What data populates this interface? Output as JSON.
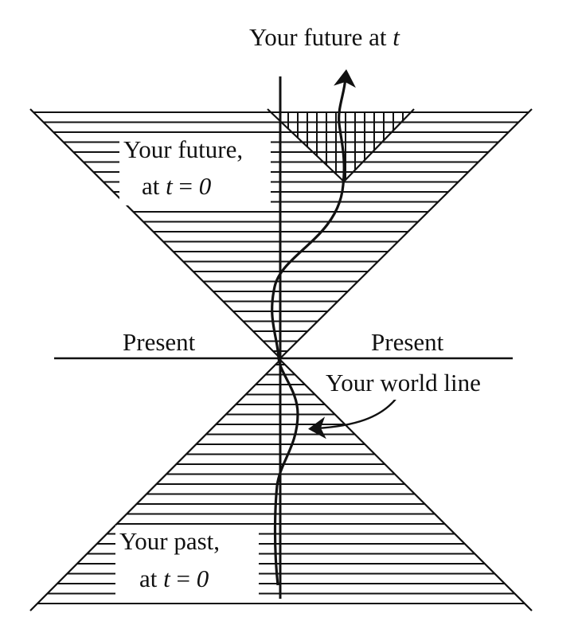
{
  "labels": {
    "future_at_t": {
      "text": "Your future at ",
      "var": "t"
    },
    "future_t0_line1": "Your future,",
    "future_t0_line2": {
      "text": "at ",
      "var": "t",
      "rest": " = ",
      "num": "0"
    },
    "present_left": "Present",
    "present_right": "Present",
    "world_line": "Your world line",
    "past_t0_line1": "Your past,",
    "past_t0_line2": {
      "text": "at ",
      "var": "t",
      "rest": " = ",
      "num": "0"
    }
  }
}
